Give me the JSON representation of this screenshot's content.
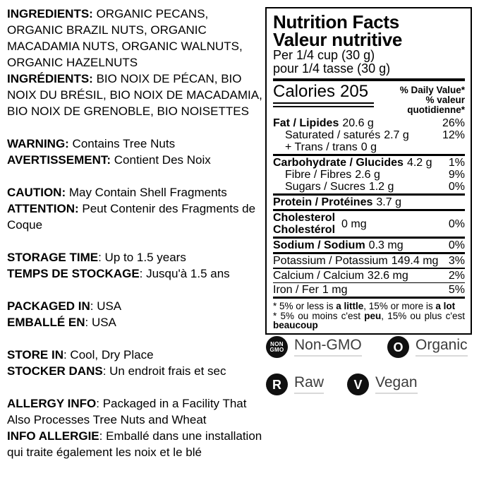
{
  "left_column": {
    "blocks": [
      {
        "items": [
          {
            "label": "INGREDIENTS:",
            "text": " ORGANIC PECANS, ORGANIC BRAZIL NUTS, ORGANIC MACADAMIA NUTS, ORGANIC WALNUTS, ORGANIC HAZELNUTS"
          },
          {
            "label": "INGRÉDIENTS:",
            "text": " BIO NOIX DE PÉCAN, BIO NOIX DU BRÉSIL, BIO NOIX DE MACADAMIA, BIO NOIX DE GRENOBLE, BIO NOISETTES"
          }
        ]
      },
      {
        "items": [
          {
            "label": "WARNING:",
            "text": " Contains Tree Nuts"
          },
          {
            "label": "AVERTISSEMENT:",
            "text": " Contient Des Noix"
          }
        ]
      },
      {
        "items": [
          {
            "label": "CAUTION:",
            "text": " May Contain Shell Fragments"
          },
          {
            "label": "ATTENTION:",
            "text": " Peut Contenir des Fragments de Coque"
          }
        ]
      },
      {
        "items": [
          {
            "label": "STORAGE TIME",
            "text": ": Up to 1.5 years"
          },
          {
            "label": "TEMPS DE STOCKAGE",
            "text": ": Jusqu'à 1.5 ans"
          }
        ]
      },
      {
        "items": [
          {
            "label": "PACKAGED IN",
            "text": ": USA"
          },
          {
            "label": "EMBALLÉ EN",
            "text": ": USA"
          }
        ]
      },
      {
        "items": [
          {
            "label": "STORE IN",
            "text": ": Cool, Dry Place"
          },
          {
            "label": "STOCKER DANS",
            "text": ": Un endroit frais et sec"
          }
        ]
      },
      {
        "items": [
          {
            "label": "ALLERGY INFO",
            "text": ": Packaged in a Facility That Also Processes Tree Nuts and Wheat"
          },
          {
            "label": "INFO ALLERGIE",
            "text": ": Emballé dans une installation qui traite également les noix et le blé"
          }
        ]
      }
    ]
  },
  "nutrition_facts": {
    "title_en": "Nutrition Facts",
    "title_fr": "Valeur nutritive",
    "serving_en": "Per 1/4 cup (30 g)",
    "serving_fr": "pour 1/4 tasse (30 g)",
    "calories_label": "Calories",
    "calories_value": "205",
    "daily_value_en": "% Daily Value*",
    "daily_value_fr": "% valeur quotidienne*",
    "rows": [
      {
        "name": "Fat / Lipides",
        "value": "20.6 g",
        "pct": "26%"
      },
      {
        "name": "Saturated / saturés",
        "value": "2.7 g",
        "pct": "12%"
      },
      {
        "name": "+ Trans / trans",
        "value": "0 g",
        "pct": ""
      },
      {
        "name": "Carbohydrate / Glucides",
        "value": "4.2 g",
        "pct": "1%"
      },
      {
        "name": "Fibre / Fibres",
        "value": "2.6 g",
        "pct": "9%"
      },
      {
        "name": "Sugars / Sucres",
        "value": "1.2 g",
        "pct": "0%"
      },
      {
        "name": "Protein / Protéines",
        "value": "3.7 g",
        "pct": ""
      },
      {
        "name_line1": "Cholesterol",
        "name_line2": "Cholestérol",
        "value": "0 mg",
        "pct": "0%"
      },
      {
        "name": "Sodium / Sodium",
        "value": "0.3 mg",
        "pct": "0%"
      },
      {
        "name": "Potassium / Potassium",
        "value": "149.4 mg",
        "pct": "3%"
      },
      {
        "name": "Calcium / Calcium",
        "value": "32.6 mg",
        "pct": "2%"
      },
      {
        "name": "Iron / Fer",
        "value": "1 mg",
        "pct": "5%"
      }
    ],
    "footnote_en": {
      "pre": "* 5% or less is ",
      "bold1": "a little",
      "mid": ", 15% or more is ",
      "bold2": "a lot"
    },
    "footnote_fr": {
      "pre": "* 5% ou moins c'est ",
      "bold1": "peu",
      "mid": ", 15% ou plus c'est ",
      "bold2": "beaucoup"
    }
  },
  "badges": [
    {
      "circle_line1": "NON",
      "circle_line2": "GMO",
      "label": "Non-GMO"
    },
    {
      "circle_letter": "O",
      "label": "Organic"
    },
    {
      "circle_letter": "R",
      "label": "Raw"
    },
    {
      "circle_letter": "V",
      "label": "Vegan"
    }
  ],
  "colors": {
    "text": "#000000",
    "badge_label": "#3c3c3c",
    "badge_circle": "#101010",
    "label_underline": "#d9d9d9"
  }
}
